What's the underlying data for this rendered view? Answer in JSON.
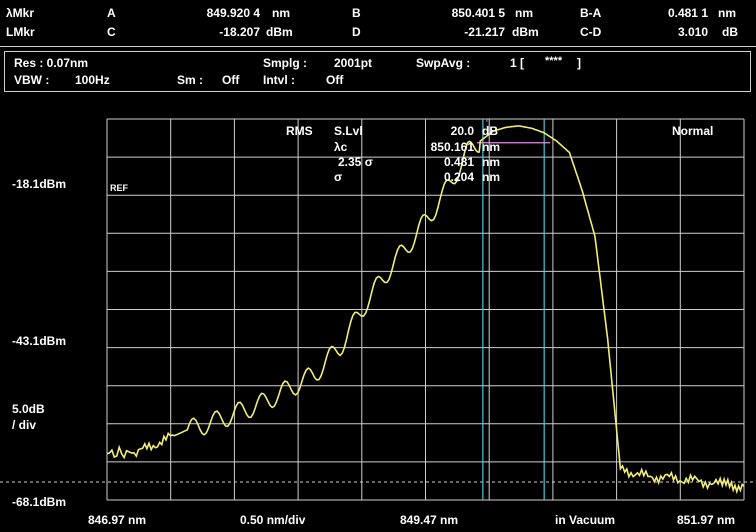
{
  "marker_panel": {
    "row1": {
      "label": "λMkr",
      "a_label": "A",
      "a_value": "849.920 4",
      "a_unit": "nm",
      "b_label": "B",
      "b_value": "850.401 5",
      "b_unit": "nm",
      "ba_label": "B-A",
      "ba_value": "0.481 1",
      "ba_unit": "nm"
    },
    "row2": {
      "label": "LMkr",
      "c_label": "C",
      "c_value": "-18.207",
      "c_unit": "dBm",
      "d_label": "D",
      "d_value": "-21.217",
      "d_unit": "dBm",
      "cd_label": "C-D",
      "cd_value": "3.010",
      "cd_unit": "dB"
    }
  },
  "settings_panel": {
    "res": "Res : 0.07nm",
    "smplg_label": "Smplg :",
    "smplg_value": "2001pt",
    "swpavg_label": "SwpAvg :",
    "swpavg_value": "1 [",
    "swpavg_stars": "****",
    "swpavg_close": "]",
    "vbw_label": "VBW :",
    "vbw_value": "100Hz",
    "sm_label": "Sm :",
    "sm_value": "Off",
    "intvl_label": "Intvl :",
    "intvl_value": "Off"
  },
  "analysis": {
    "method": "RMS",
    "slvl_label": "S.Lvl",
    "slvl_value": "20.0",
    "slvl_unit": "dB",
    "lc_label": "λc",
    "lc_value": "850.161",
    "lc_unit": "nm",
    "sigma235_label": "2.35 σ",
    "sigma235_value": "0.481",
    "sigma235_unit": "nm",
    "sigma_label": "σ",
    "sigma_value": "0.204",
    "sigma_unit": "nm",
    "mode": "Normal"
  },
  "y_axis": {
    "ref_level": "-18.1dBm",
    "ref_tag": "REF",
    "mid_level": "-43.1dBm",
    "scale": "5.0dB",
    "scale_unit": "/ div",
    "bottom_level": "-68.1dBm"
  },
  "x_axis": {
    "start": "846.97 nm",
    "span": "0.50 nm/div",
    "center": "849.47 nm",
    "medium": "in Vacuum",
    "stop": "851.97 nm"
  },
  "colors": {
    "trace": "#f2ec78",
    "marker_cyan": "#4fc6d8",
    "marker_magenta": "#e08ee0",
    "grid": "#cfcfcf",
    "background": "#000000"
  },
  "chart_data": {
    "type": "line",
    "x": [
      846.97,
      847.2,
      847.4,
      847.6,
      847.8,
      848.0,
      848.2,
      848.4,
      848.6,
      848.8,
      849.0,
      849.2,
      849.4,
      849.6,
      849.8,
      849.9,
      850.0,
      850.1,
      850.2,
      850.3,
      850.4,
      850.5,
      850.6,
      850.7,
      850.8,
      850.9,
      851.0,
      851.2,
      851.4,
      851.6,
      851.8,
      851.97
    ],
    "y": [
      -62.0,
      -61.9,
      -60.4,
      -58.9,
      -57.9,
      -56.6,
      -55.3,
      -53.5,
      -51.6,
      -48.0,
      -42.3,
      -37.5,
      -33.2,
      -28.4,
      -22.5,
      -21.0,
      -19.7,
      -19.2,
      -19.0,
      -19.3,
      -19.9,
      -21.0,
      -22.5,
      -27.5,
      -33.5,
      -47.0,
      -64.0,
      -65.0,
      -65.2,
      -65.6,
      -66.1,
      -66.3
    ],
    "xlim": [
      846.97,
      851.97
    ],
    "ylim": [
      -68.1,
      -18.1
    ],
    "grid": true
  }
}
